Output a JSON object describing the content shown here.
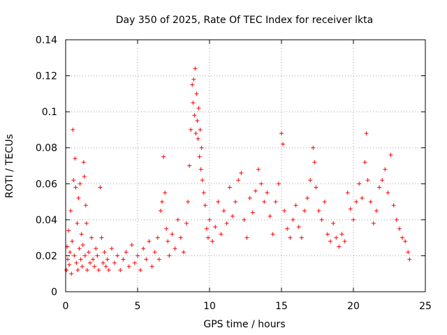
{
  "chart_data": {
    "type": "scatter",
    "title": "Day 350 of 2025, Rate Of TEC Index for receiver lkta",
    "xlabel": "GPS time / hours",
    "ylabel": "ROTI / TECUs",
    "xlim": [
      0,
      25
    ],
    "ylim": [
      0,
      0.14
    ],
    "xticks": [
      0,
      5,
      10,
      15,
      20,
      25
    ],
    "xtick_labels": [
      "0",
      "5",
      "10",
      "15",
      "20",
      "25"
    ],
    "yticks": [
      0,
      0.02,
      0.04,
      0.06,
      0.08,
      0.1,
      0.12,
      0.14
    ],
    "ytick_labels": [
      "0",
      "0.02",
      "0.04",
      "0.06",
      "0.08",
      "0.1",
      "0.12",
      "0.14"
    ],
    "grid": true,
    "marker": "+",
    "color": "#ff0000",
    "series": [
      {
        "values_note_removed": true,
        "points": [
          [
            0.05,
            0.012
          ],
          [
            0.1,
            0.025
          ],
          [
            0.15,
            0.018
          ],
          [
            0.2,
            0.034
          ],
          [
            0.25,
            0.015
          ],
          [
            0.3,
            0.022
          ],
          [
            0.35,
            0.045
          ],
          [
            0.4,
            0.01
          ],
          [
            0.45,
            0.028
          ],
          [
            0.5,
            0.09
          ],
          [
            0.55,
            0.062
          ],
          [
            0.6,
            0.02
          ],
          [
            0.65,
            0.074
          ],
          [
            0.7,
            0.058
          ],
          [
            0.75,
            0.016
          ],
          [
            0.8,
            0.038
          ],
          [
            0.85,
            0.012
          ],
          [
            0.9,
            0.052
          ],
          [
            0.95,
            0.024
          ],
          [
            1.0,
            0.06
          ],
          [
            1.05,
            0.018
          ],
          [
            1.1,
            0.032
          ],
          [
            1.15,
            0.014
          ],
          [
            1.2,
            0.026
          ],
          [
            1.25,
            0.072
          ],
          [
            1.3,
            0.064
          ],
          [
            1.35,
            0.02
          ],
          [
            1.4,
            0.048
          ],
          [
            1.45,
            0.038
          ],
          [
            1.5,
            0.012
          ],
          [
            1.6,
            0.022
          ],
          [
            1.7,
            0.016
          ],
          [
            1.8,
            0.03
          ],
          [
            1.9,
            0.018
          ],
          [
            2.0,
            0.014
          ],
          [
            2.1,
            0.024
          ],
          [
            2.2,
            0.02
          ],
          [
            2.3,
            0.012
          ],
          [
            2.4,
            0.058
          ],
          [
            2.5,
            0.03
          ],
          [
            2.6,
            0.016
          ],
          [
            2.7,
            0.022
          ],
          [
            2.8,
            0.014
          ],
          [
            2.9,
            0.018
          ],
          [
            3.0,
            0.012
          ],
          [
            3.2,
            0.024
          ],
          [
            3.4,
            0.016
          ],
          [
            3.6,
            0.02
          ],
          [
            3.8,
            0.012
          ],
          [
            4.0,
            0.018
          ],
          [
            4.2,
            0.022
          ],
          [
            4.4,
            0.014
          ],
          [
            4.6,
            0.026
          ],
          [
            4.8,
            0.016
          ],
          [
            5.0,
            0.02
          ],
          [
            5.2,
            0.012
          ],
          [
            5.4,
            0.024
          ],
          [
            5.6,
            0.018
          ],
          [
            5.8,
            0.028
          ],
          [
            6.0,
            0.014
          ],
          [
            6.2,
            0.022
          ],
          [
            6.4,
            0.03
          ],
          [
            6.5,
            0.018
          ],
          [
            6.6,
            0.045
          ],
          [
            6.7,
            0.05
          ],
          [
            6.8,
            0.075
          ],
          [
            6.9,
            0.055
          ],
          [
            7.0,
            0.035
          ],
          [
            7.1,
            0.028
          ],
          [
            7.2,
            0.02
          ],
          [
            7.4,
            0.032
          ],
          [
            7.6,
            0.024
          ],
          [
            7.8,
            0.04
          ],
          [
            8.0,
            0.03
          ],
          [
            8.2,
            0.022
          ],
          [
            8.4,
            0.038
          ],
          [
            8.5,
            0.05
          ],
          [
            8.6,
            0.07
          ],
          [
            8.7,
            0.09
          ],
          [
            8.8,
            0.115
          ],
          [
            8.85,
            0.105
          ],
          [
            8.9,
            0.118
          ],
          [
            8.95,
            0.098
          ],
          [
            9.0,
            0.124
          ],
          [
            9.05,
            0.088
          ],
          [
            9.1,
            0.11
          ],
          [
            9.15,
            0.095
          ],
          [
            9.2,
            0.085
          ],
          [
            9.25,
            0.102
          ],
          [
            9.3,
            0.075
          ],
          [
            9.35,
            0.09
          ],
          [
            9.4,
            0.068
          ],
          [
            9.45,
            0.08
          ],
          [
            9.5,
            0.062
          ],
          [
            9.6,
            0.055
          ],
          [
            9.7,
            0.048
          ],
          [
            9.8,
            0.035
          ],
          [
            9.9,
            0.03
          ],
          [
            10.0,
            0.04
          ],
          [
            10.2,
            0.028
          ],
          [
            10.4,
            0.036
          ],
          [
            10.6,
            0.05
          ],
          [
            10.8,
            0.032
          ],
          [
            11.0,
            0.045
          ],
          [
            11.2,
            0.038
          ],
          [
            11.4,
            0.058
          ],
          [
            11.6,
            0.042
          ],
          [
            11.8,
            0.05
          ],
          [
            12.0,
            0.062
          ],
          [
            12.2,
            0.066
          ],
          [
            12.4,
            0.04
          ],
          [
            12.6,
            0.03
          ],
          [
            12.8,
            0.052
          ],
          [
            13.0,
            0.044
          ],
          [
            13.2,
            0.056
          ],
          [
            13.4,
            0.068
          ],
          [
            13.6,
            0.06
          ],
          [
            13.8,
            0.05
          ],
          [
            14.0,
            0.055
          ],
          [
            14.2,
            0.042
          ],
          [
            14.4,
            0.032
          ],
          [
            14.6,
            0.05
          ],
          [
            14.8,
            0.06
          ],
          [
            15.0,
            0.088
          ],
          [
            15.1,
            0.082
          ],
          [
            15.2,
            0.045
          ],
          [
            15.4,
            0.035
          ],
          [
            15.6,
            0.03
          ],
          [
            15.8,
            0.04
          ],
          [
            16.0,
            0.048
          ],
          [
            16.2,
            0.036
          ],
          [
            16.4,
            0.03
          ],
          [
            16.6,
            0.045
          ],
          [
            16.8,
            0.052
          ],
          [
            17.0,
            0.062
          ],
          [
            17.2,
            0.08
          ],
          [
            17.3,
            0.072
          ],
          [
            17.4,
            0.058
          ],
          [
            17.6,
            0.045
          ],
          [
            17.8,
            0.04
          ],
          [
            18.0,
            0.05
          ],
          [
            18.2,
            0.032
          ],
          [
            18.4,
            0.028
          ],
          [
            18.6,
            0.038
          ],
          [
            18.8,
            0.03
          ],
          [
            19.0,
            0.025
          ],
          [
            19.2,
            0.032
          ],
          [
            19.4,
            0.028
          ],
          [
            19.6,
            0.055
          ],
          [
            19.8,
            0.046
          ],
          [
            20.0,
            0.04
          ],
          [
            20.2,
            0.05
          ],
          [
            20.4,
            0.06
          ],
          [
            20.6,
            0.052
          ],
          [
            20.8,
            0.072
          ],
          [
            20.9,
            0.088
          ],
          [
            21.0,
            0.062
          ],
          [
            21.2,
            0.05
          ],
          [
            21.4,
            0.038
          ],
          [
            21.6,
            0.045
          ],
          [
            21.8,
            0.058
          ],
          [
            22.0,
            0.062
          ],
          [
            22.2,
            0.068
          ],
          [
            22.4,
            0.055
          ],
          [
            22.6,
            0.076
          ],
          [
            22.8,
            0.048
          ],
          [
            23.0,
            0.04
          ],
          [
            23.2,
            0.035
          ],
          [
            23.4,
            0.03
          ],
          [
            23.6,
            0.028
          ],
          [
            23.8,
            0.022
          ],
          [
            23.9,
            0.018
          ]
        ]
      }
    ]
  }
}
